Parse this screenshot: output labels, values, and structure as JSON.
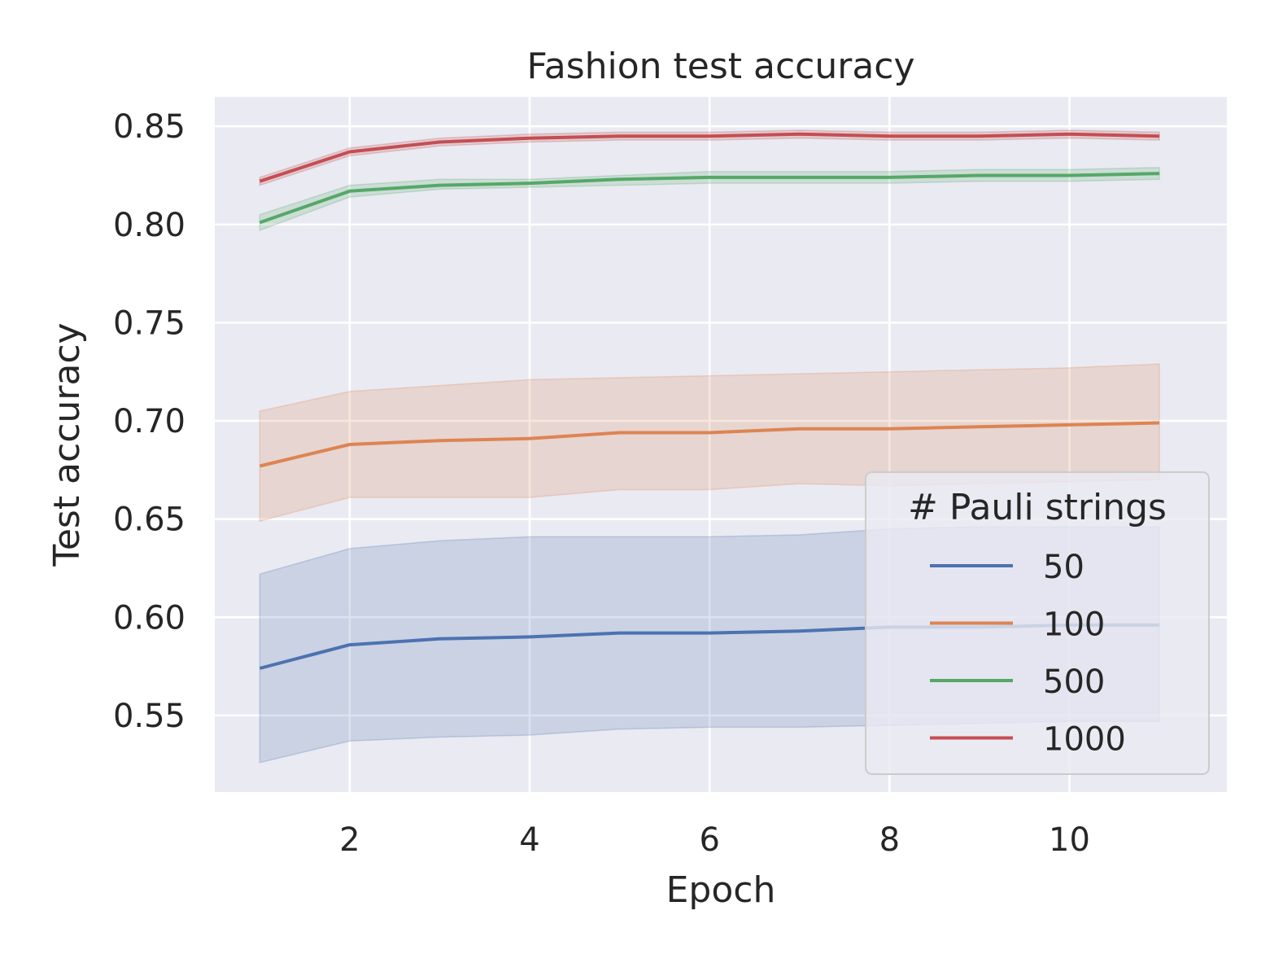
{
  "chart_data": {
    "type": "line",
    "title": "Fashion test accuracy",
    "xlabel": "Epoch",
    "ylabel": "Test accuracy",
    "xlim": [
      0.5,
      11.75
    ],
    "ylim": [
      0.511,
      0.865
    ],
    "xticks": [
      2,
      4,
      6,
      8,
      10
    ],
    "xtick_labels": [
      "2",
      "4",
      "6",
      "8",
      "10"
    ],
    "yticks": [
      0.55,
      0.6,
      0.65,
      0.7,
      0.75,
      0.8,
      0.85
    ],
    "ytick_labels": [
      "0.55",
      "0.60",
      "0.65",
      "0.70",
      "0.75",
      "0.80",
      "0.85"
    ],
    "grid": true,
    "legend": {
      "title": "# Pauli strings",
      "placement": "lower-right"
    },
    "x": [
      1,
      2,
      3,
      4,
      5,
      6,
      7,
      8,
      9,
      10,
      11
    ],
    "series": [
      {
        "name": "50",
        "color": "#4c72b0",
        "values": [
          0.574,
          0.586,
          0.589,
          0.59,
          0.592,
          0.592,
          0.593,
          0.595,
          0.595,
          0.596,
          0.596
        ],
        "lower": [
          0.526,
          0.537,
          0.539,
          0.54,
          0.543,
          0.544,
          0.544,
          0.545,
          0.546,
          0.547,
          0.547
        ],
        "upper": [
          0.622,
          0.635,
          0.639,
          0.641,
          0.641,
          0.641,
          0.642,
          0.645,
          0.646,
          0.646,
          0.646
        ]
      },
      {
        "name": "100",
        "color": "#dd8452",
        "values": [
          0.677,
          0.688,
          0.69,
          0.691,
          0.694,
          0.694,
          0.696,
          0.696,
          0.697,
          0.698,
          0.699
        ],
        "lower": [
          0.649,
          0.661,
          0.661,
          0.661,
          0.665,
          0.665,
          0.668,
          0.667,
          0.668,
          0.669,
          0.67
        ],
        "upper": [
          0.705,
          0.715,
          0.718,
          0.721,
          0.722,
          0.723,
          0.724,
          0.725,
          0.726,
          0.727,
          0.729
        ]
      },
      {
        "name": "500",
        "color": "#55a868",
        "values": [
          0.801,
          0.817,
          0.82,
          0.821,
          0.823,
          0.824,
          0.824,
          0.824,
          0.825,
          0.825,
          0.826
        ],
        "lower": [
          0.797,
          0.814,
          0.818,
          0.819,
          0.82,
          0.821,
          0.821,
          0.821,
          0.822,
          0.822,
          0.823
        ],
        "upper": [
          0.805,
          0.82,
          0.823,
          0.823,
          0.825,
          0.827,
          0.827,
          0.827,
          0.828,
          0.828,
          0.829
        ]
      },
      {
        "name": "1000",
        "color": "#c44e52",
        "values": [
          0.822,
          0.837,
          0.842,
          0.844,
          0.845,
          0.845,
          0.846,
          0.845,
          0.845,
          0.846,
          0.845
        ],
        "lower": [
          0.82,
          0.835,
          0.84,
          0.842,
          0.843,
          0.843,
          0.844,
          0.843,
          0.843,
          0.844,
          0.843
        ],
        "upper": [
          0.824,
          0.839,
          0.844,
          0.846,
          0.847,
          0.847,
          0.848,
          0.847,
          0.847,
          0.848,
          0.847
        ]
      }
    ]
  }
}
